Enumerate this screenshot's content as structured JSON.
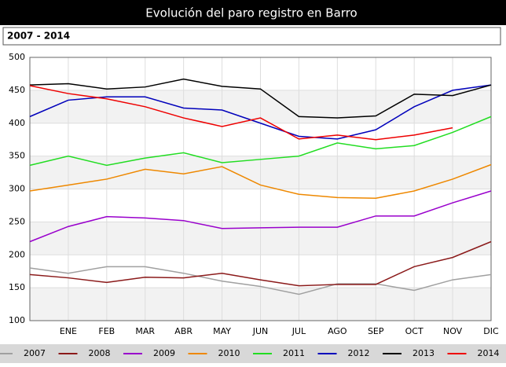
{
  "chart_data": {
    "type": "line",
    "title": "Evolución del paro registro en Barro",
    "subtitle": "2007 - 2014",
    "categories": [
      null,
      "ENE",
      "FEB",
      "MAR",
      "ABR",
      "MAY",
      "JUN",
      "JUL",
      "AGO",
      "SEP",
      "OCT",
      "NOV",
      "DIC"
    ],
    "ylim": [
      100,
      500
    ],
    "yticks": [
      100,
      150,
      200,
      250,
      300,
      350,
      400,
      450,
      500
    ],
    "grid": true,
    "series": [
      {
        "name": "2007",
        "color": "#a0a0a0",
        "values": [
          180,
          172,
          182,
          182,
          172,
          160,
          152,
          140,
          156,
          156,
          146,
          162,
          170
        ]
      },
      {
        "name": "2008",
        "color": "#8b1a1a",
        "values": [
          170,
          165,
          158,
          166,
          165,
          172,
          162,
          153,
          155,
          155,
          182,
          196,
          220
        ]
      },
      {
        "name": "2009",
        "color": "#9900cc",
        "values": [
          220,
          243,
          258,
          256,
          252,
          240,
          241,
          242,
          242,
          259,
          259,
          279,
          297
        ]
      },
      {
        "name": "2010",
        "color": "#ee8800",
        "values": [
          297,
          306,
          315,
          330,
          323,
          334,
          306,
          292,
          287,
          286,
          297,
          315,
          337
        ]
      },
      {
        "name": "2011",
        "color": "#22dd22",
        "values": [
          336,
          350,
          336,
          347,
          355,
          340,
          345,
          350,
          370,
          361,
          366,
          386,
          410
        ]
      },
      {
        "name": "2012",
        "color": "#0000bb",
        "values": [
          410,
          435,
          440,
          440,
          423,
          420,
          400,
          380,
          376,
          390,
          425,
          450,
          458
        ]
      },
      {
        "name": "2013",
        "color": "#000000",
        "values": [
          458,
          460,
          452,
          455,
          467,
          456,
          452,
          410,
          408,
          411,
          444,
          442,
          458
        ]
      },
      {
        "name": "2014",
        "color": "#ee0000",
        "values": [
          457,
          445,
          437,
          425,
          408,
          395,
          408,
          376,
          382,
          375,
          382,
          393,
          null
        ]
      }
    ]
  }
}
